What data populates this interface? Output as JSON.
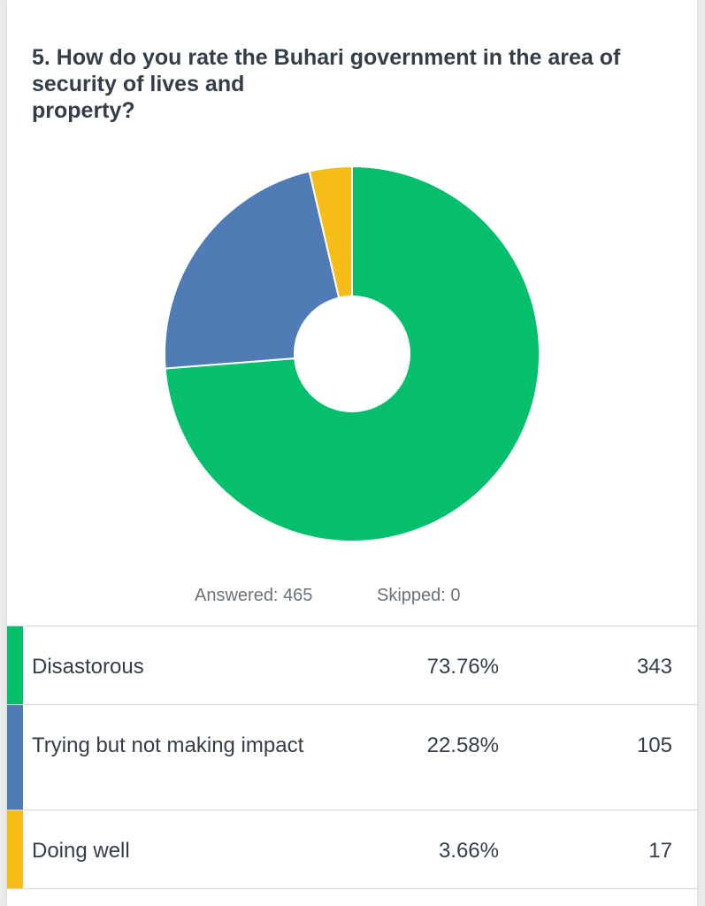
{
  "question": "5. How do you rate the Buhari government in the area of\nsecurity of lives and\nproperty?",
  "stats": {
    "answered": "Answered: 465",
    "skipped": "Skipped: 0"
  },
  "chart_data": {
    "type": "pie",
    "title": "5. How do you rate the Buhari government in the area of security of lives and property?",
    "donut": true,
    "categories": [
      "Disastorous",
      "Trying but not making impact",
      "Doing well"
    ],
    "values": [
      343,
      105,
      17
    ],
    "percentages": [
      "73.76%",
      "22.58%",
      "3.66%"
    ],
    "colors": [
      "#05bf6d",
      "#507cb6",
      "#f6bd16"
    ]
  },
  "results": [
    {
      "label": "Disastorous",
      "percent": "73.76%",
      "count": "343",
      "color": "#05bf6d"
    },
    {
      "label": "Trying but not making impact",
      "percent": "22.58%",
      "count": "105",
      "color": "#507cb6"
    },
    {
      "label": "Doing well",
      "percent": "3.66%",
      "count": "17",
      "color": "#f6bd16"
    }
  ]
}
